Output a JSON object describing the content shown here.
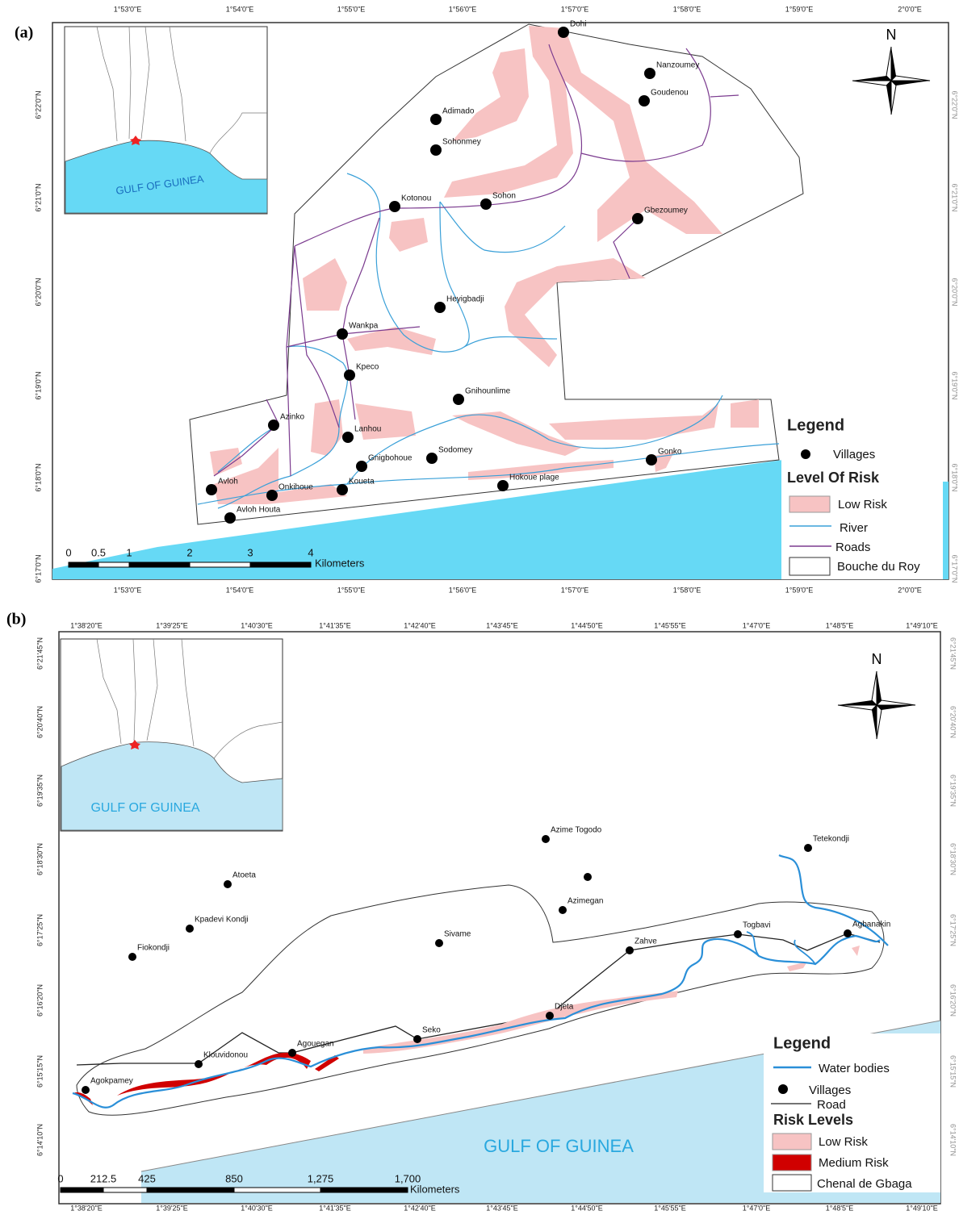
{
  "panels": [
    {
      "label": "(a)",
      "north": "N",
      "inset_label": "GULF OF GUINEA",
      "lon_labels": [
        "1°53'0\"E",
        "1°54'0\"E",
        "1°55'0\"E",
        "1°56'0\"E",
        "1°57'0\"E",
        "1°58'0\"E",
        "1°59'0\"E",
        "2°0'0\"E"
      ],
      "lat_labels": [
        "6°22'0\"N",
        "6°21'0\"N",
        "6°20'0\"N",
        "6°19'0\"N",
        "6°18'0\"N",
        "6°17'0\"N"
      ],
      "villages": [
        "Dohi",
        "Nanzoumey",
        "Goudenou",
        "Adimado",
        "Sohonmey",
        "Kotonou",
        "Sohon",
        "Gbezoumey",
        "Heyigbadji",
        "Wankpa",
        "Kpeco",
        "Gnihounlime",
        "Azinko",
        "Lanhou",
        "Sodomey",
        "Gnigbohoue",
        "Gonko",
        "Avloh",
        "Onkihoue",
        "Koueta",
        "Hokoue plage",
        "Avloh Houta"
      ],
      "legend": {
        "title": "Legend",
        "villages": "Villages",
        "risk_title": "Level Of Risk",
        "low_risk": "Low Risk",
        "river": "River",
        "roads": "Roads",
        "boundary": "Bouche du Roy"
      },
      "scale": {
        "ticks": [
          "0",
          "0.5",
          "1",
          "2",
          "3",
          "4"
        ],
        "unit": "Kilometers"
      }
    },
    {
      "label": "(b)",
      "north": "N",
      "inset_label": "GULF OF GUINEA",
      "sea_label": "GULF OF GUINEA",
      "lon_labels": [
        "1°38'20\"E",
        "1°39'25\"E",
        "1°40'30\"E",
        "1°41'35\"E",
        "1°42'40\"E",
        "1°43'45\"E",
        "1°44'50\"E",
        "1°45'55\"E",
        "1°47'0\"E",
        "1°48'5\"E",
        "1°49'10\"E"
      ],
      "lat_labels": [
        "6°21'45\"N",
        "6°20'40\"N",
        "6°19'35\"N",
        "6°18'30\"N",
        "6°17'25\"N",
        "6°16'20\"N",
        "6°15'15\"N",
        "6°14'10\"N"
      ],
      "villages": [
        "Azime Togodo",
        "Tetekondji",
        "Atoeta",
        "Azimegan",
        "Kpadevi Kondji",
        "Sivame",
        "Togbavi",
        "Agbanakin",
        "Fiokondji",
        "Zahve",
        "Djeta",
        "Seko",
        "Agouegan",
        "Klouvidonou",
        "Agokpamey"
      ],
      "legend": {
        "title": "Legend",
        "water": "Water bodies",
        "villages": "Villages",
        "road": "Road",
        "risk_title": "Risk Levels",
        "low_risk": "Low Risk",
        "medium_risk": "Medium Risk",
        "boundary": "Chenal de Gbaga"
      },
      "scale": {
        "ticks": [
          "0",
          "212.5",
          "425",
          "850",
          "1,275",
          "1,700"
        ],
        "unit": "Kilometers"
      }
    }
  ]
}
